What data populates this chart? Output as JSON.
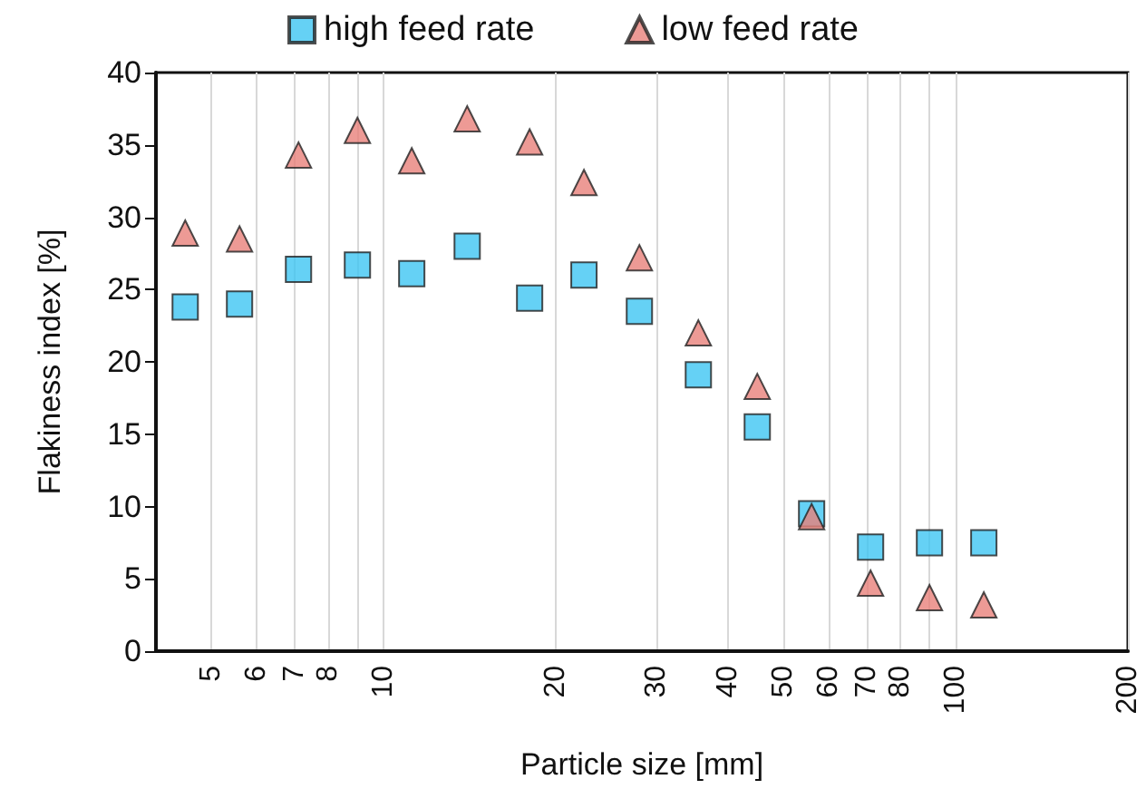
{
  "chart_data": {
    "type": "scatter",
    "xlabel": "Particle size [mm]",
    "ylabel": "Flakiness index [%]",
    "log": "x",
    "grid": "x",
    "legend": "top",
    "xlim": [
      4,
      200
    ],
    "xticks": [
      5,
      6,
      7,
      8,
      {
        "value": 9,
        "label": null
      },
      10,
      20,
      30,
      40,
      50,
      60,
      70,
      80,
      {
        "value": 90,
        "label": null
      },
      100,
      200
    ],
    "ylim": [
      0,
      40
    ],
    "yticks": [
      0,
      5,
      10,
      15,
      20,
      25,
      30,
      35,
      40
    ],
    "x": [
      4.5,
      5.6,
      7.1,
      9,
      11.2,
      14,
      18,
      22.4,
      28,
      35.5,
      45,
      56,
      71,
      90,
      112
    ],
    "series": [
      {
        "name": "high feed rate",
        "color": "#3fc6f2",
        "marker": "square",
        "values": [
          23.8,
          24.0,
          26.4,
          26.7,
          26.1,
          28.0,
          24.4,
          26.0,
          23.5,
          19.1,
          15.5,
          9.5,
          7.2,
          7.5,
          7.5
        ]
      },
      {
        "name": "low feed rate",
        "color": "#e8817a",
        "marker": "triangle",
        "values": [
          28.9,
          28.5,
          34.3,
          36.0,
          33.9,
          36.8,
          35.2,
          32.4,
          27.2,
          22.0,
          18.3,
          9.3,
          4.7,
          3.7,
          3.2
        ]
      }
    ]
  }
}
